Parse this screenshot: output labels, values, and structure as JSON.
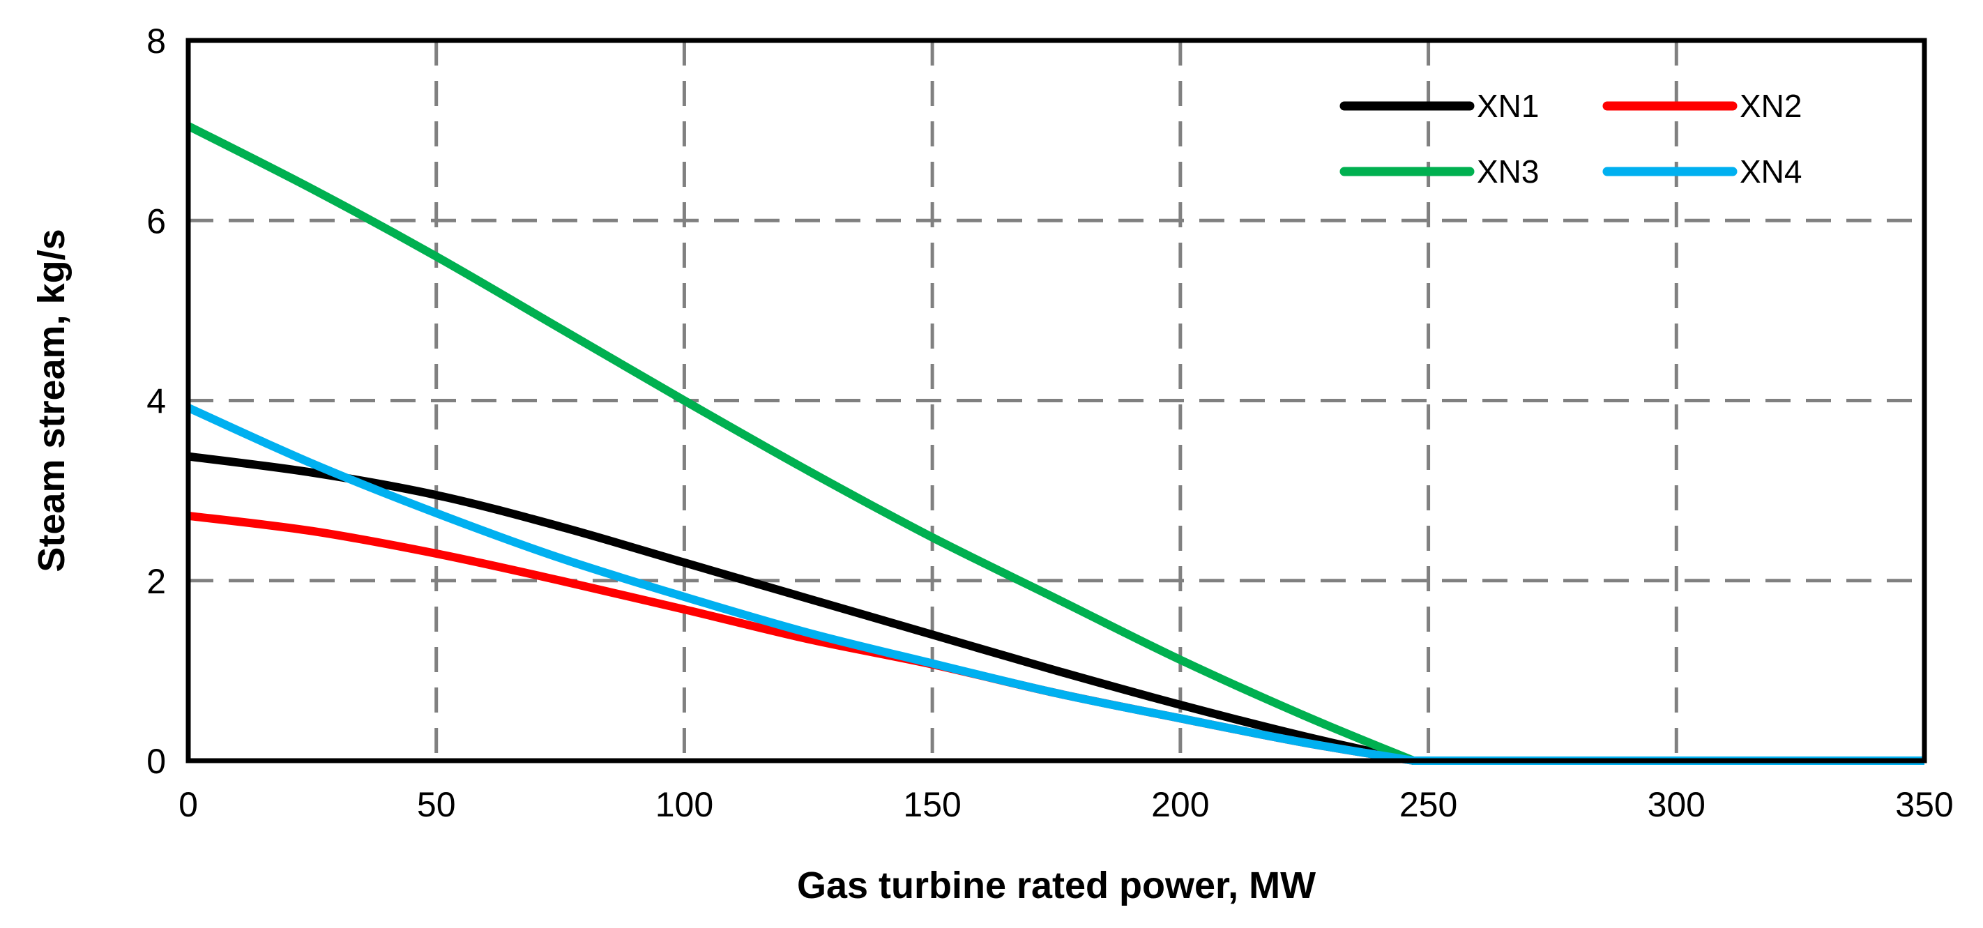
{
  "chart_data": {
    "type": "line",
    "title": "",
    "xlabel": "Gas turbine rated power, MW",
    "ylabel": "Steam stream, kg/s",
    "xlim": [
      0,
      350
    ],
    "ylim": [
      0,
      8
    ],
    "x_ticks": [
      0,
      50,
      100,
      150,
      200,
      250,
      300,
      350
    ],
    "y_ticks": [
      0,
      2,
      4,
      6,
      8
    ],
    "x_tick_labels": [
      "0",
      "50",
      "100",
      "150",
      "200",
      "250",
      "300",
      "350"
    ],
    "y_tick_labels": [
      "0",
      "2",
      "4",
      "6",
      "8"
    ],
    "grid": true,
    "legend_position": "top-right",
    "series": [
      {
        "name": "XN1",
        "color": "#000000",
        "x": [
          0,
          25,
          50,
          75,
          100,
          125,
          150,
          175,
          200,
          225,
          247,
          250,
          300,
          350
        ],
        "y": [
          3.38,
          3.2,
          2.95,
          2.6,
          2.2,
          1.8,
          1.4,
          1.0,
          0.62,
          0.27,
          0,
          0,
          0,
          0
        ]
      },
      {
        "name": "XN2",
        "color": "#ff0000",
        "x": [
          0,
          25,
          50,
          75,
          100,
          125,
          150,
          175,
          200,
          225,
          247,
          250,
          300,
          350
        ],
        "y": [
          2.72,
          2.55,
          2.3,
          2.0,
          1.68,
          1.35,
          1.07,
          0.75,
          0.47,
          0.2,
          0,
          0,
          0,
          0
        ]
      },
      {
        "name": "XN3",
        "color": "#00b050",
        "x": [
          0,
          25,
          50,
          75,
          100,
          125,
          150,
          175,
          200,
          225,
          247,
          250,
          300,
          350
        ],
        "y": [
          7.05,
          6.35,
          5.6,
          4.8,
          4.0,
          3.22,
          2.48,
          1.8,
          1.12,
          0.5,
          0,
          0,
          0,
          0
        ]
      },
      {
        "name": "XN4",
        "color": "#00b0f0",
        "x": [
          0,
          25,
          50,
          75,
          100,
          125,
          150,
          175,
          200,
          225,
          247,
          250,
          300,
          350
        ],
        "y": [
          3.92,
          3.3,
          2.75,
          2.25,
          1.82,
          1.42,
          1.08,
          0.75,
          0.47,
          0.2,
          0,
          0,
          0,
          0
        ]
      }
    ]
  }
}
